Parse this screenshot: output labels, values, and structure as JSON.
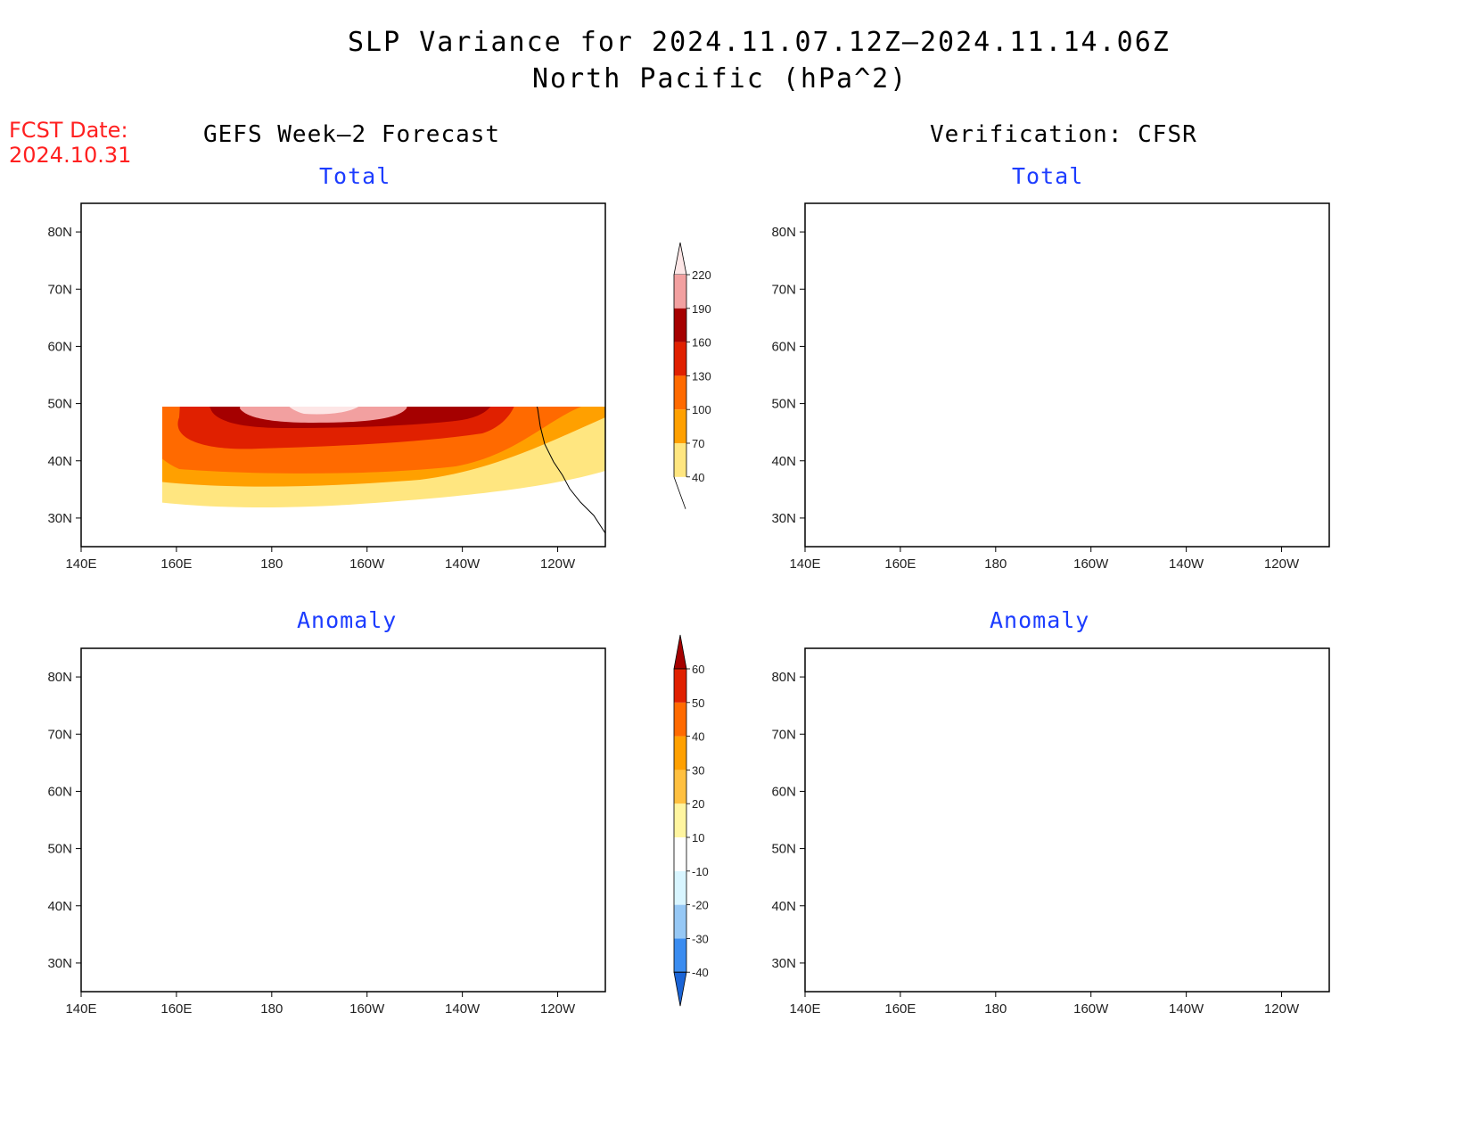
{
  "header": {
    "title_line1": "SLP Variance for 2024.11.07.12Z–2024.11.14.06Z",
    "title_line2": "North Pacific (hPa^2)",
    "fcst_label": "FCST Date:",
    "fcst_date": "2024.10.31"
  },
  "columns": {
    "left": "GEFS Week–2 Forecast",
    "right": "Verification: CFSR"
  },
  "panels": {
    "gefs_total": {
      "title": "Total"
    },
    "cfsr_total": {
      "title": "Total"
    },
    "gefs_anomaly": {
      "title": "Anomaly"
    },
    "cfsr_anomaly": {
      "title": "Anomaly"
    }
  },
  "axes": {
    "lon_labels": [
      "140E",
      "160E",
      "180",
      "160W",
      "140W",
      "120W"
    ],
    "lat_labels": [
      "80N",
      "70N",
      "60N",
      "50N",
      "40N",
      "30N"
    ],
    "lon_values": [
      140,
      160,
      180,
      200,
      220,
      240
    ],
    "lat_values": [
      80,
      70,
      60,
      50,
      40,
      30
    ],
    "lon_range": [
      140,
      250
    ],
    "lat_range": [
      25,
      85
    ]
  },
  "colorbars": {
    "total": {
      "levels": [
        "40",
        "70",
        "100",
        "130",
        "160",
        "190",
        "220"
      ],
      "colors": [
        "#ffe680",
        "#ffa000",
        "#ff6a00",
        "#e02000",
        "#a50000",
        "#f2a0a0",
        "#fde6e6"
      ]
    },
    "anomaly": {
      "levels": [
        "-40",
        "-30",
        "-20",
        "-10",
        "10",
        "20",
        "30",
        "40",
        "50",
        "60"
      ],
      "colors": [
        "#1a64d6",
        "#3a8cf0",
        "#96c8f5",
        "#d8f5ff",
        "#ffffff",
        "#fff5a0",
        "#ffc040",
        "#ffa000",
        "#ff6a00",
        "#e02000",
        "#a50000"
      ]
    }
  }
}
